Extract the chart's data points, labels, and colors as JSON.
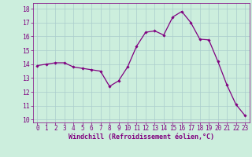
{
  "x": [
    0,
    1,
    2,
    3,
    4,
    5,
    6,
    7,
    8,
    9,
    10,
    11,
    12,
    13,
    14,
    15,
    16,
    17,
    18,
    19,
    20,
    21,
    22,
    23
  ],
  "y": [
    13.9,
    14.0,
    14.1,
    14.1,
    13.8,
    13.7,
    13.6,
    13.5,
    12.4,
    12.8,
    13.8,
    15.3,
    16.3,
    16.4,
    16.1,
    17.4,
    17.8,
    17.0,
    15.8,
    15.75,
    14.2,
    12.5,
    11.1,
    10.3
  ],
  "line_color": "#800080",
  "marker": "D",
  "marker_size": 1.8,
  "bg_color": "#cceedd",
  "grid_color": "#aacccc",
  "xlabel": "Windchill (Refroidissement éolien,°C)",
  "xlabel_color": "#800080",
  "tick_color": "#800080",
  "ylim": [
    9.8,
    18.4
  ],
  "xlim": [
    -0.5,
    23.5
  ],
  "yticks": [
    10,
    11,
    12,
    13,
    14,
    15,
    16,
    17,
    18
  ],
  "xticks": [
    0,
    1,
    2,
    3,
    4,
    5,
    6,
    7,
    8,
    9,
    10,
    11,
    12,
    13,
    14,
    15,
    16,
    17,
    18,
    19,
    20,
    21,
    22,
    23
  ],
  "linewidth": 0.9,
  "xlabel_fontsize": 6.0,
  "tick_fontsize": 5.5
}
